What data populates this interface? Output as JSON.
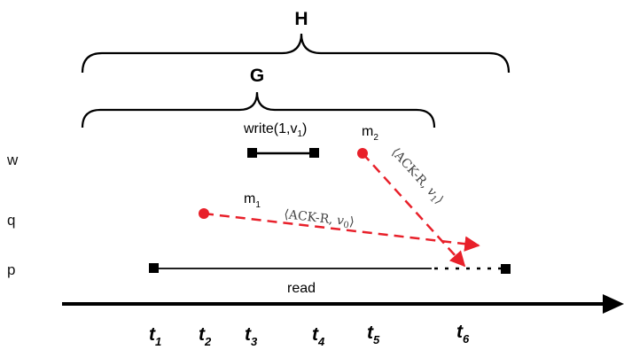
{
  "braces": {
    "outer": {
      "label": "H"
    },
    "inner": {
      "label": "G"
    }
  },
  "processes": [
    {
      "id": "w",
      "label": "w"
    },
    {
      "id": "q",
      "label": "q"
    },
    {
      "id": "p",
      "label": "p"
    }
  ],
  "operations": {
    "write": {
      "prefix": "write(1,v",
      "sub": "1",
      "suffix": ")"
    },
    "read": {
      "label": "read"
    }
  },
  "messages": {
    "m1": {
      "name": "m",
      "name_sub": "1",
      "content_prefix": "⟨ACK-R, ",
      "content_var": "v",
      "content_sub": "0",
      "content_suffix": "⟩"
    },
    "m2": {
      "name": "m",
      "name_sub": "2",
      "content_prefix": "⟨ACK-R, ",
      "content_var": "v",
      "content_sub": "1",
      "content_suffix": "⟩"
    }
  },
  "time_marks": [
    {
      "base": "t",
      "sub": "1"
    },
    {
      "base": "t",
      "sub": "2"
    },
    {
      "base": "t",
      "sub": "3"
    },
    {
      "base": "t",
      "sub": "4"
    },
    {
      "base": "t",
      "sub": "5"
    },
    {
      "base": "t",
      "sub": "6"
    }
  ],
  "colors": {
    "message": "#e8202a",
    "line": "#000000"
  }
}
